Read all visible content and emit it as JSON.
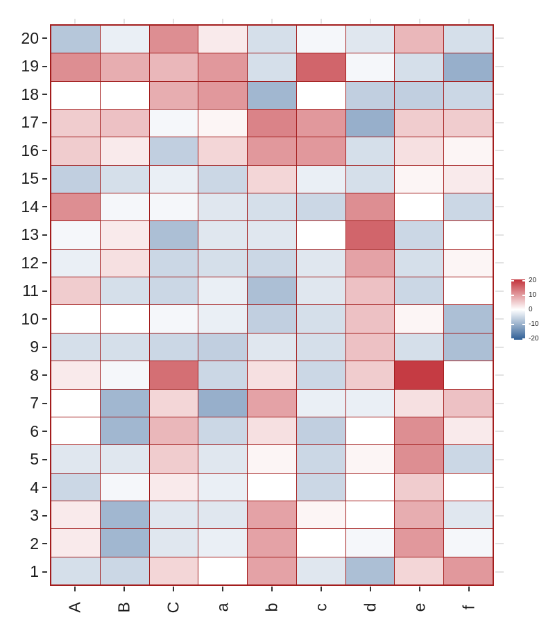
{
  "chart_data": {
    "type": "heatmap",
    "title": "",
    "xlabel": "",
    "ylabel": "",
    "x_categories": [
      "A",
      "B",
      "C",
      "a",
      "b",
      "c",
      "d",
      "e",
      "f"
    ],
    "y_categories": [
      "20",
      "19",
      "18",
      "17",
      "16",
      "15",
      "14",
      "13",
      "12",
      "11",
      "10",
      "9",
      "8",
      "7",
      "6",
      "5",
      "4",
      "3",
      "2",
      "1"
    ],
    "rows_top_to_bottom": [
      {
        "label": "20",
        "values": [
          -7,
          -2,
          11,
          2,
          -4,
          -1,
          -3,
          7,
          -4
        ]
      },
      {
        "label": "19",
        "values": [
          11,
          8,
          7,
          10,
          -4,
          15,
          -1,
          -4,
          -10
        ]
      },
      {
        "label": "18",
        "values": [
          0,
          0,
          8,
          10,
          -9,
          0,
          -6,
          -6,
          -5
        ]
      },
      {
        "label": "17",
        "values": [
          5,
          6,
          -1,
          1,
          12,
          10,
          -10,
          5,
          5
        ]
      },
      {
        "label": "16",
        "values": [
          5,
          2,
          -6,
          4,
          10,
          10,
          -4,
          3,
          1
        ]
      },
      {
        "label": "15",
        "values": [
          -6,
          -4,
          -2,
          -5,
          4,
          -2,
          -4,
          1,
          2
        ]
      },
      {
        "label": "14",
        "values": [
          11,
          -1,
          -1,
          -3,
          -4,
          -5,
          11,
          0,
          -5
        ]
      },
      {
        "label": "13",
        "values": [
          -1,
          2,
          -8,
          -3,
          -3,
          0,
          15,
          -5,
          0
        ]
      },
      {
        "label": "12",
        "values": [
          -2,
          3,
          -5,
          -4,
          -5,
          -3,
          9,
          -4,
          1
        ]
      },
      {
        "label": "11",
        "values": [
          5,
          -4,
          -5,
          -2,
          -8,
          -3,
          6,
          -5,
          0
        ]
      },
      {
        "label": "10",
        "values": [
          0,
          0,
          -1,
          -2,
          -6,
          -4,
          6,
          1,
          -8
        ]
      },
      {
        "label": "9",
        "values": [
          -4,
          -4,
          -5,
          -6,
          -3,
          -4,
          6,
          -4,
          -8
        ]
      },
      {
        "label": "8",
        "values": [
          2,
          -1,
          14,
          -5,
          3,
          -5,
          5,
          19,
          0
        ]
      },
      {
        "label": "7",
        "values": [
          0,
          -9,
          4,
          -10,
          9,
          -2,
          -2,
          3,
          6
        ]
      },
      {
        "label": "6",
        "values": [
          0,
          -9,
          7,
          -5,
          3,
          -6,
          0,
          11,
          2
        ]
      },
      {
        "label": "5",
        "values": [
          -3,
          -3,
          5,
          -3,
          1,
          -5,
          1,
          11,
          -5
        ]
      },
      {
        "label": "4",
        "values": [
          -5,
          -1,
          2,
          -2,
          0,
          -5,
          0,
          5,
          0
        ]
      },
      {
        "label": "3",
        "values": [
          2,
          -9,
          -3,
          -3,
          9,
          1,
          0,
          8,
          -3
        ]
      },
      {
        "label": "2",
        "values": [
          2,
          -9,
          -3,
          -2,
          9,
          0,
          -1,
          10,
          -1
        ]
      },
      {
        "label": "1",
        "values": [
          -4,
          -5,
          4,
          0,
          9,
          -3,
          -8,
          4,
          10
        ]
      }
    ],
    "colorscale": {
      "min": -20,
      "max": 20,
      "low": "#2F5F96",
      "mid": "#FFFFFF",
      "high": "#C23139"
    },
    "grid_line_color": "#A31D1D",
    "legend": {
      "position": "right",
      "tick_labels": [
        "20",
        "10",
        "0",
        "-10",
        "-20"
      ],
      "tick_values": [
        20,
        10,
        0,
        -10,
        -20
      ]
    },
    "axis": {
      "tick_color": "#333333",
      "minor_stub_color": "#E2E2E2"
    },
    "legend_on": true,
    "grid_on": true
  }
}
